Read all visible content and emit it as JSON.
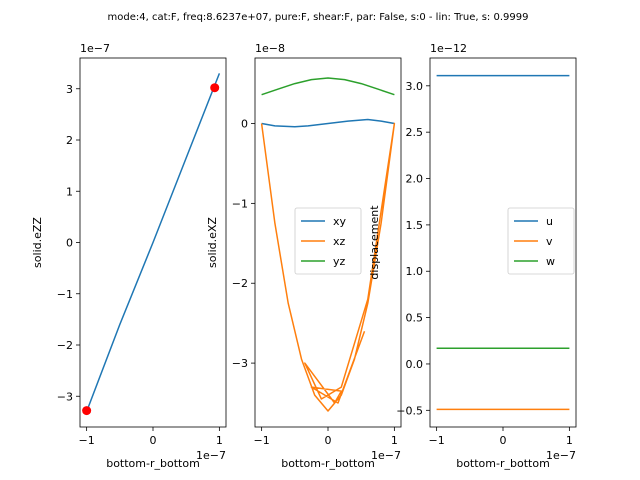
{
  "suptitle": "mode:4, cat:F, freq:8.6237e+07, pure:F, shear:F, par: False, s:0 - lin: True, s: 0.9999",
  "colors": {
    "blue": "#1f77b4",
    "orange": "#ff7f0e",
    "green": "#2ca02c",
    "marker": "#ff0000"
  },
  "chart_data": [
    {
      "type": "line",
      "xlabel": "bottom-r_bottom",
      "ylabel": "solid.eZZ",
      "x_offset_text": "1e−7",
      "y_offset_text": "1e−7",
      "xlim": [
        -1.1,
        1.1
      ],
      "ylim": [
        -3.6,
        3.6
      ],
      "xticks": [
        {
          "v": -1,
          "t": "−1"
        },
        {
          "v": 0,
          "t": "0"
        },
        {
          "v": 1,
          "t": "1"
        }
      ],
      "yticks": [
        {
          "v": -3,
          "t": "−3"
        },
        {
          "v": -2,
          "t": "−2"
        },
        {
          "v": -1,
          "t": "−1"
        },
        {
          "v": 0,
          "t": "0"
        },
        {
          "v": 1,
          "t": "1"
        },
        {
          "v": 2,
          "t": "2"
        },
        {
          "v": 3,
          "t": "3"
        }
      ],
      "series": [
        {
          "color": "#1f77b4",
          "x": [
            -1.0,
            -0.5,
            0.0,
            0.5,
            1.0
          ],
          "y": [
            -3.3,
            -1.6,
            0.0,
            1.65,
            3.3
          ]
        }
      ],
      "markers": [
        {
          "x": -1.0,
          "y": -3.28
        },
        {
          "x": 0.93,
          "y": 3.02
        }
      ]
    },
    {
      "type": "line",
      "xlabel": "bottom-r_bottom",
      "ylabel": "solid.eXZ",
      "x_offset_text": "1e−7",
      "y_offset_text": "1e−8",
      "xlim": [
        -1.1,
        1.1
      ],
      "ylim": [
        -3.8,
        0.82
      ],
      "xticks": [
        {
          "v": -1,
          "t": "−1"
        },
        {
          "v": 0,
          "t": "0"
        },
        {
          "v": 1,
          "t": "1"
        }
      ],
      "yticks": [
        {
          "v": -3,
          "t": "−3"
        },
        {
          "v": -2,
          "t": "−2"
        },
        {
          "v": -1,
          "t": "−1"
        },
        {
          "v": 0,
          "t": "0"
        }
      ],
      "legend": {
        "placement": "center-right",
        "entries": [
          "xy",
          "xz",
          "yz"
        ]
      },
      "series": [
        {
          "name": "xy",
          "color": "#1f77b4",
          "x": [
            -1.0,
            -0.8,
            -0.5,
            -0.3,
            0.0,
            0.3,
            0.6,
            0.8,
            1.0
          ],
          "y": [
            0.0,
            -0.03,
            -0.04,
            -0.03,
            0.0,
            0.03,
            0.05,
            0.03,
            0.0
          ]
        },
        {
          "name": "xz",
          "color": "#ff7f0e",
          "x": [
            -1.0,
            -0.8,
            -0.6,
            -0.4,
            -0.2,
            0.0,
            0.2,
            0.4,
            0.6,
            0.8,
            1.0,
            0.6,
            0.2,
            -0.1,
            -0.35,
            0.1,
            0.2,
            -0.25,
            0.15,
            0.55
          ],
          "y": [
            0.0,
            -1.25,
            -2.25,
            -2.95,
            -3.4,
            -3.6,
            -3.4,
            -2.95,
            -2.25,
            -1.25,
            0.0,
            -2.2,
            -3.3,
            -3.45,
            -3.0,
            -3.5,
            -3.35,
            -3.3,
            -3.5,
            -2.6
          ]
        },
        {
          "name": "yz",
          "color": "#2ca02c",
          "x": [
            -1.0,
            -0.75,
            -0.5,
            -0.25,
            0.0,
            0.25,
            0.5,
            0.75,
            1.0
          ],
          "y": [
            0.36,
            0.43,
            0.5,
            0.55,
            0.57,
            0.55,
            0.5,
            0.43,
            0.36
          ]
        }
      ]
    },
    {
      "type": "line",
      "xlabel": "bottom-r_bottom",
      "ylabel": "displacement",
      "x_offset_text": "1e−7",
      "y_offset_text": "1e−12",
      "xlim": [
        -1.1,
        1.1
      ],
      "ylim": [
        -0.68,
        3.3
      ],
      "xticks": [
        {
          "v": -1,
          "t": "−1"
        },
        {
          "v": 0,
          "t": "0"
        },
        {
          "v": 1,
          "t": "1"
        }
      ],
      "yticks": [
        {
          "v": -0.5,
          "t": "−0.5"
        },
        {
          "v": 0,
          "t": "0.0"
        },
        {
          "v": 0.5,
          "t": "0.5"
        },
        {
          "v": 1,
          "t": "1.0"
        },
        {
          "v": 1.5,
          "t": "1.5"
        },
        {
          "v": 2,
          "t": "2.0"
        },
        {
          "v": 2.5,
          "t": "2.5"
        },
        {
          "v": 3,
          "t": "3.0"
        }
      ],
      "legend": {
        "placement": "center-right",
        "entries": [
          "u",
          "v",
          "w"
        ]
      },
      "series": [
        {
          "name": "u",
          "color": "#1f77b4",
          "x": [
            -1.0,
            1.0
          ],
          "y": [
            3.11,
            3.11
          ]
        },
        {
          "name": "v",
          "color": "#ff7f0e",
          "x": [
            -1.0,
            1.0
          ],
          "y": [
            -0.49,
            -0.49
          ]
        },
        {
          "name": "w",
          "color": "#2ca02c",
          "x": [
            -1.0,
            1.0
          ],
          "y": [
            0.17,
            0.17
          ]
        }
      ]
    }
  ]
}
